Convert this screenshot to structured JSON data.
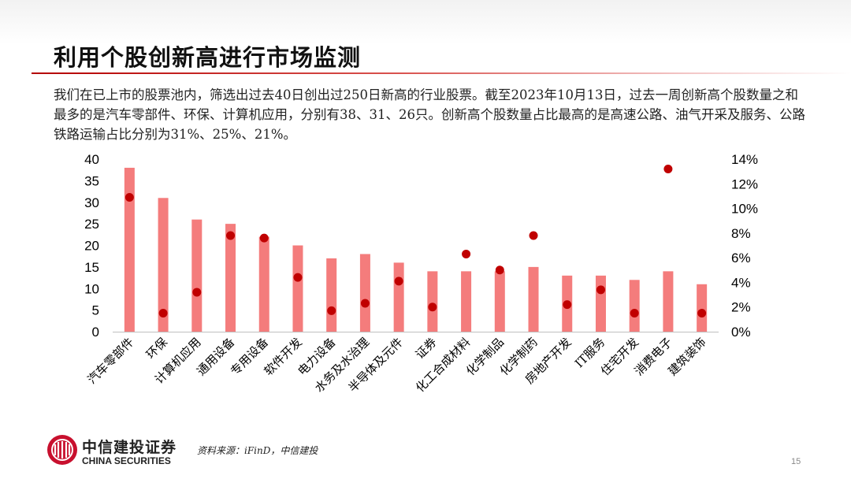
{
  "slide": {
    "title": "利用个股创新高进行市场监测",
    "intro": "我们在已上市的股票池内，筛选出过去40日创出过250日新高的行业股票。截至2023年10月13日，过去一周创新高个股数量之和最多的是汽车零部件、环保、计算机应用，分别有38、31、26只。创新高个股数量占比最高的是高速公路、油气开采及服务、公路铁路运输占比分别为31%、25%、21%。",
    "source": "资料来源：iFinD，中信建投",
    "page_number": "15"
  },
  "logo": {
    "name_cn": "中信建投证券",
    "name_en": "CHINA SECURITIES"
  },
  "colors": {
    "bar": "#f47c7c",
    "dot": "#c00000",
    "title_rule": "#b40000"
  },
  "chart_data": {
    "type": "bar",
    "categories": [
      "汽车零部件",
      "环保",
      "计算机应用",
      "通用设备",
      "专用设备",
      "软件开发",
      "电力设备",
      "水务及水治理",
      "半导体及元件",
      "证券",
      "化工合成材料",
      "化学制品",
      "化学制药",
      "房地产开发",
      "IT服务",
      "住宅开发",
      "消费电子",
      "建筑装饰"
    ],
    "series": [
      {
        "axis": "left",
        "type": "bar",
        "values": [
          38,
          31,
          26,
          25,
          22,
          20,
          17,
          18,
          16,
          14,
          14,
          14,
          15,
          13,
          13,
          12,
          14,
          11
        ]
      },
      {
        "axis": "right",
        "type": "scatter",
        "values": [
          0.109,
          0.015,
          0.032,
          0.078,
          0.076,
          0.044,
          0.017,
          0.023,
          0.041,
          0.02,
          0.063,
          0.05,
          0.078,
          0.022,
          0.034,
          0.015,
          0.132,
          0.015
        ]
      }
    ],
    "y_left": {
      "min": 0,
      "max": 40,
      "ticks": [
        "0",
        "5",
        "10",
        "15",
        "20",
        "25",
        "30",
        "35",
        "40"
      ]
    },
    "y_right": {
      "min": 0,
      "max": 0.14,
      "ticks": [
        "0%",
        "2%",
        "4%",
        "6%",
        "8%",
        "10%",
        "12%",
        "14%"
      ]
    },
    "grid": false,
    "legend": "none"
  }
}
